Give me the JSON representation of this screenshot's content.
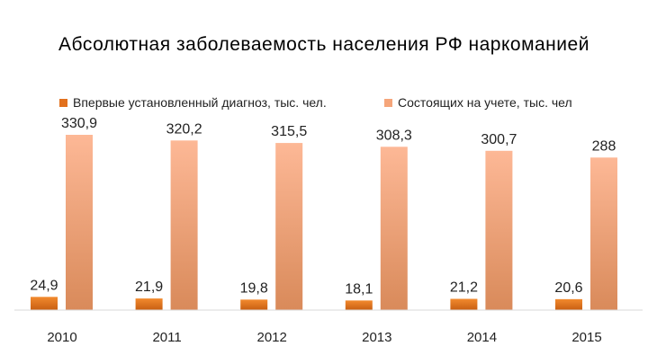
{
  "chart_data": {
    "type": "bar",
    "title": "Абсолютная заболеваемость населения РФ наркоманией",
    "categories": [
      "2010",
      "2011",
      "2012",
      "2013",
      "2014",
      "2015"
    ],
    "series": [
      {
        "name": "Впервые установленный диагноз, тыс. чел.",
        "values": [
          24.9,
          21.9,
          19.8,
          18.1,
          21.2,
          20.6
        ],
        "labels": [
          "24,9",
          "21,9",
          "19,8",
          "18,1",
          "21,2",
          "20,6"
        ],
        "color": "#e2711d"
      },
      {
        "name": "Состоящих на учете, тыс. чел",
        "values": [
          330.9,
          320.2,
          315.5,
          308.3,
          300.7,
          288
        ],
        "labels": [
          "330,9",
          "320,2",
          "315,5",
          "308,3",
          "300,7",
          "288"
        ],
        "color": "#f5a57a"
      }
    ],
    "ylim": [
      0,
      350
    ],
    "legend_position": "top",
    "grid": false
  }
}
